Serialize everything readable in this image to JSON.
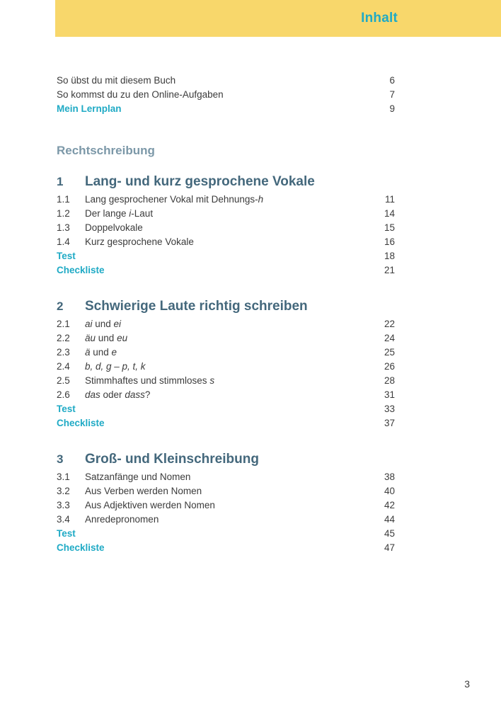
{
  "colors": {
    "accent": "#1FAAC5",
    "chapter_heading": "#44687C",
    "section_heading": "#7C98A8",
    "header_background": "#F8D76B",
    "body_text": "#3B3B3B"
  },
  "header": {
    "title": "Inhalt"
  },
  "front_matter": [
    {
      "label": [
        {
          "t": "So übst du mit diesem Buch"
        }
      ],
      "page": "6",
      "style": "normal"
    },
    {
      "label": [
        {
          "t": "So kommst du zu den Online-Aufgaben"
        }
      ],
      "page": "7",
      "style": "normal"
    },
    {
      "label": [
        {
          "t": "Mein Lernplan"
        }
      ],
      "page": "9",
      "style": "accent"
    }
  ],
  "section_heading": "Rechtschreibung",
  "chapters": [
    {
      "number": "1",
      "title": "Lang- und kurz gesprochene Vokale",
      "entries": [
        {
          "num": "1.1",
          "label": [
            {
              "t": "Lang gesprochener Vokal mit Dehnungs-"
            },
            {
              "t": "h",
              "i": true
            }
          ],
          "page": "11"
        },
        {
          "num": "1.2",
          "label": [
            {
              "t": "Der lange "
            },
            {
              "t": "i",
              "i": true
            },
            {
              "t": "-Laut"
            }
          ],
          "page": "14"
        },
        {
          "num": "1.3",
          "label": [
            {
              "t": "Doppelvokale"
            }
          ],
          "page": "15"
        },
        {
          "num": "1.4",
          "label": [
            {
              "t": "Kurz gesprochene Vokale"
            }
          ],
          "page": "16"
        }
      ],
      "extras": [
        {
          "label": "Test",
          "page": "18"
        },
        {
          "label": "Checkliste",
          "page": "21"
        }
      ]
    },
    {
      "number": "2",
      "title": "Schwierige Laute richtig schreiben",
      "entries": [
        {
          "num": "2.1",
          "label": [
            {
              "t": "ai",
              "i": true
            },
            {
              "t": " und "
            },
            {
              "t": "ei",
              "i": true
            }
          ],
          "page": "22"
        },
        {
          "num": "2.2",
          "label": [
            {
              "t": "äu",
              "i": true
            },
            {
              "t": " und "
            },
            {
              "t": "eu",
              "i": true
            }
          ],
          "page": "24"
        },
        {
          "num": "2.3",
          "label": [
            {
              "t": "ä",
              "i": true
            },
            {
              "t": " und "
            },
            {
              "t": "e",
              "i": true
            }
          ],
          "page": "25"
        },
        {
          "num": "2.4",
          "label": [
            {
              "t": "b, d, g – p, t, k",
              "i": true
            }
          ],
          "page": "26"
        },
        {
          "num": "2.5",
          "label": [
            {
              "t": "Stimmhaftes und stimmloses "
            },
            {
              "t": "s",
              "i": true
            }
          ],
          "page": "28"
        },
        {
          "num": "2.6",
          "label": [
            {
              "t": "das",
              "i": true
            },
            {
              "t": " oder "
            },
            {
              "t": "dass",
              "i": true
            },
            {
              "t": "?"
            }
          ],
          "page": "31"
        }
      ],
      "extras": [
        {
          "label": "Test",
          "page": "33"
        },
        {
          "label": "Checkliste",
          "page": "37"
        }
      ]
    },
    {
      "number": "3",
      "title": "Groß- und Kleinschreibung",
      "entries": [
        {
          "num": "3.1",
          "label": [
            {
              "t": "Satzanfänge und Nomen"
            }
          ],
          "page": "38"
        },
        {
          "num": "3.2",
          "label": [
            {
              "t": "Aus Verben werden Nomen"
            }
          ],
          "page": "40"
        },
        {
          "num": "3.3",
          "label": [
            {
              "t": "Aus Adjektiven werden Nomen"
            }
          ],
          "page": "42"
        },
        {
          "num": "3.4",
          "label": [
            {
              "t": "Anredepronomen"
            }
          ],
          "page": "44"
        }
      ],
      "extras": [
        {
          "label": "Test",
          "page": "45"
        },
        {
          "label": "Checkliste",
          "page": "47"
        }
      ]
    }
  ],
  "footer": {
    "page_number": "3"
  }
}
